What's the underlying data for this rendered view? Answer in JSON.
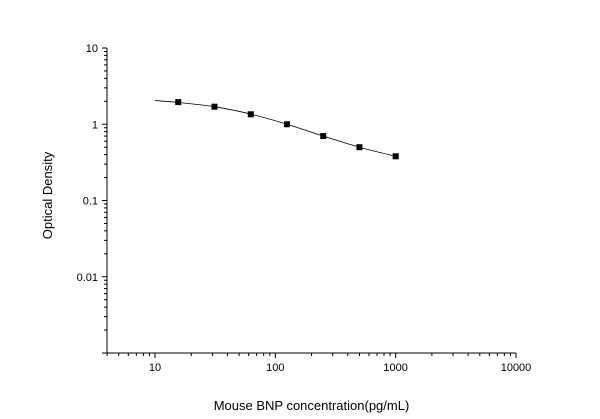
{
  "chart_data": {
    "type": "scatter",
    "title": "",
    "xlabel": "Mouse BNP concentration(pg/mL)",
    "ylabel": "Optical Density",
    "x_scale": "log",
    "y_scale": "log",
    "xlim": [
      4,
      10000
    ],
    "ylim": [
      0.001,
      10
    ],
    "x_tick_labels": [
      "10",
      "100",
      "1000",
      "10000"
    ],
    "x_tick_values": [
      10,
      100,
      1000,
      10000
    ],
    "y_tick_labels": [
      "10",
      "1",
      "0.1",
      "0.01"
    ],
    "y_tick_values": [
      10,
      1,
      0.1,
      0.01
    ],
    "grid": false,
    "legend": "none",
    "series": [
      {
        "marker": "square",
        "color": "#000000",
        "x": [
          15.6,
          31.2,
          62.5,
          125,
          250,
          500,
          1000
        ],
        "y": [
          1.95,
          1.7,
          1.35,
          1.0,
          0.7,
          0.5,
          0.38
        ]
      }
    ],
    "fit_curve": {
      "color": "#000000",
      "x": [
        10,
        15.6,
        31.2,
        62.5,
        125,
        250,
        500,
        1000
      ],
      "y": [
        2.05,
        1.93,
        1.7,
        1.36,
        1.0,
        0.7,
        0.5,
        0.38
      ]
    }
  }
}
